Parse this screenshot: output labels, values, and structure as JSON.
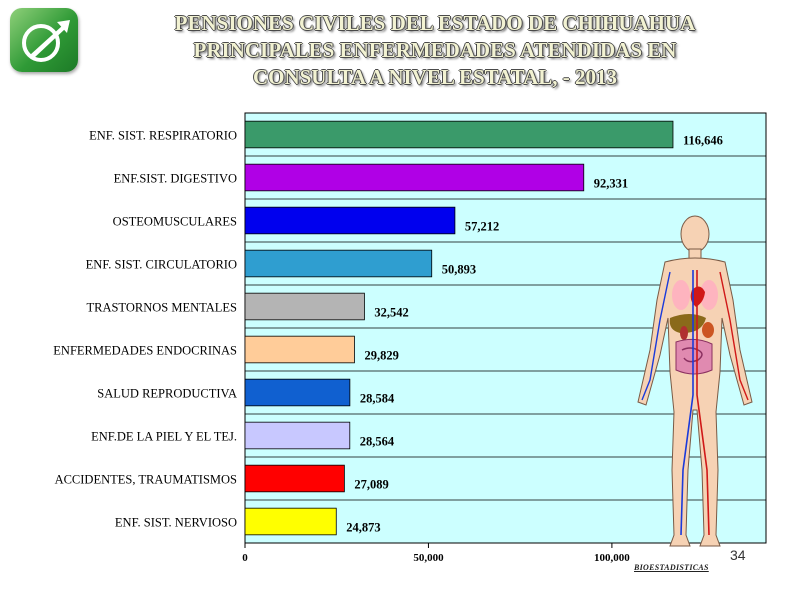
{
  "logo_icon": "pensiones-civiles-logo",
  "title_lines": [
    "PENSIONES  CIVILES  DEL  ESTADO  DE  CHIHUAHUA",
    "PRINCIPALES ENFERMEDADES ATENDIDAS EN",
    "CONSULTA  A  NIVEL  ESTATAL, - 2013"
  ],
  "page_number": "34",
  "footer": "BIOESTADISTICAS",
  "illustration_icon": "human-anatomy-figure",
  "chart_data": {
    "type": "bar",
    "orientation": "horizontal",
    "categories": [
      "ENF. SIST. RESPIRATORIO",
      "ENF.SIST. DIGESTIVO",
      "OSTEOMUSCULARES",
      "ENF. SIST. CIRCULATORIO",
      "TRASTORNOS MENTALES",
      "ENFERMEDADES ENDOCRINAS",
      "SALUD  REPRODUCTIVA",
      "ENF.DE LA PIEL Y EL TEJ.",
      "ACCIDENTES, TRAUMATISMOS",
      "ENF. SIST. NERVIOSO"
    ],
    "values": [
      116646,
      92331,
      57212,
      50893,
      32542,
      29829,
      28584,
      28564,
      27089,
      24873
    ],
    "value_labels": [
      "116,646",
      "92,331",
      "57,212",
      "50,893",
      "32,542",
      "29,829",
      "28,584",
      "28,564",
      "27,089",
      "24,873"
    ],
    "colors": [
      "#3a9a6a",
      "#b000e6",
      "#0000ee",
      "#2f9ed0",
      "#b4b4b4",
      "#ffcc99",
      "#1060d0",
      "#c8c8ff",
      "#ff0000",
      "#ffff00"
    ],
    "x_tick_labels": [
      "0",
      "50,000",
      "100,000"
    ],
    "xlim": [
      0,
      142000
    ],
    "grid": "horizontal",
    "plot_background": "#ccffff"
  }
}
